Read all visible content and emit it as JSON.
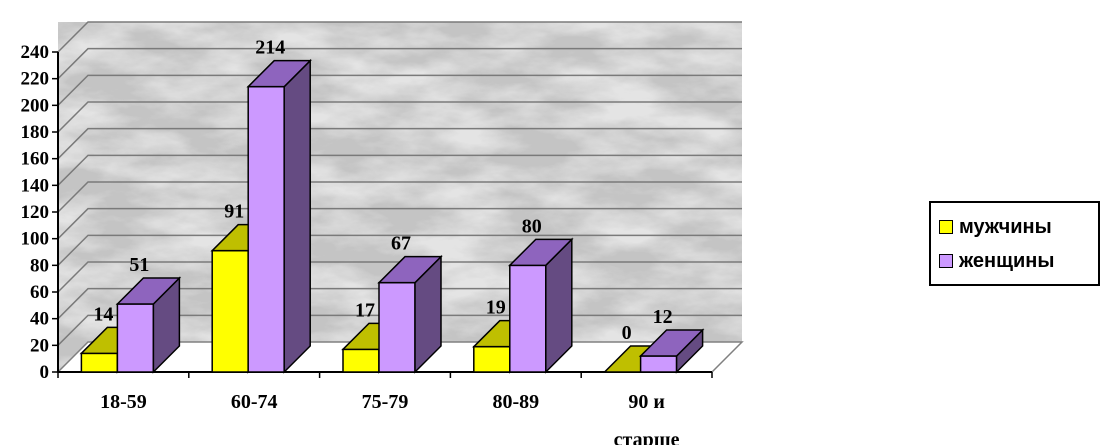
{
  "chart_data": {
    "type": "bar",
    "categories": [
      [
        "18-59"
      ],
      [
        "60-74"
      ],
      [
        "75-79"
      ],
      [
        "80-89"
      ],
      [
        "90 и",
        "старше"
      ]
    ],
    "series": [
      {
        "name": "мужчины",
        "values": [
          14,
          91,
          17,
          19,
          0
        ],
        "color": "#FFFF00",
        "top_color": "#BFBF00",
        "side_color": "#9A9A00"
      },
      {
        "name": "женщины",
        "values": [
          51,
          214,
          67,
          80,
          12
        ],
        "color": "#CC99FF",
        "top_color": "#8E64BE",
        "side_color": "#654B82"
      }
    ],
    "ylim": [
      0,
      240
    ],
    "yticks": [
      0,
      20,
      40,
      60,
      80,
      100,
      120,
      140,
      160,
      180,
      200,
      220,
      240
    ],
    "grid": true,
    "legend_position": "right",
    "background": "marble"
  }
}
